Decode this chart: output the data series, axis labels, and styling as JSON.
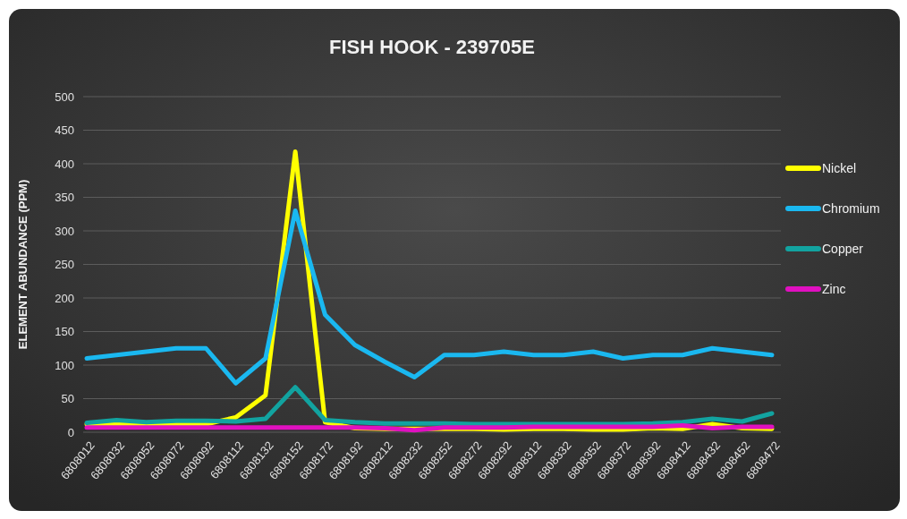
{
  "chart_data": {
    "type": "line",
    "title": "FISH HOOK - 239705E",
    "ylabel": "ELEMENT ABUNDANCE (PPM)",
    "categories": [
      "6808012",
      "6808032",
      "6808052",
      "6808072",
      "6808092",
      "6808112",
      "6808132",
      "6808152",
      "6808172",
      "6808192",
      "6808212",
      "6808232",
      "6808252",
      "6808272",
      "6808292",
      "6808312",
      "6808332",
      "6808352",
      "6808372",
      "6808392",
      "6808412",
      "6808432",
      "6808452",
      "6808472"
    ],
    "series": [
      {
        "name": "Nickel",
        "color": "#ffff00",
        "values": [
          12,
          12,
          12,
          12,
          12,
          22,
          55,
          418,
          15,
          6,
          5,
          5,
          5,
          5,
          4,
          5,
          5,
          4,
          4,
          6,
          5,
          12,
          6,
          5
        ]
      },
      {
        "name": "Chromium",
        "color": "#1ab8f0",
        "values": [
          110,
          115,
          120,
          125,
          125,
          73,
          110,
          330,
          175,
          130,
          105,
          82,
          115,
          115,
          120,
          115,
          115,
          120,
          110,
          115,
          115,
          125,
          120,
          115
        ]
      },
      {
        "name": "Copper",
        "color": "#12a3a0",
        "values": [
          14,
          18,
          15,
          17,
          17,
          16,
          20,
          67,
          18,
          15,
          13,
          13,
          13,
          12,
          12,
          12,
          12,
          12,
          12,
          13,
          15,
          20,
          16,
          28
        ]
      },
      {
        "name": "Zinc",
        "color": "#e010c0",
        "values": [
          7,
          7,
          7,
          7,
          7,
          7,
          7,
          7,
          7,
          7,
          6,
          3,
          7,
          7,
          7,
          8,
          8,
          8,
          8,
          8,
          10,
          6,
          8,
          8
        ]
      }
    ],
    "ylim": [
      0,
      500
    ],
    "yticks": [
      0,
      50,
      100,
      150,
      200,
      250,
      300,
      350,
      400,
      450,
      500
    ],
    "grid": "y",
    "legend": "right",
    "marker": "none",
    "line_style": "solid"
  }
}
